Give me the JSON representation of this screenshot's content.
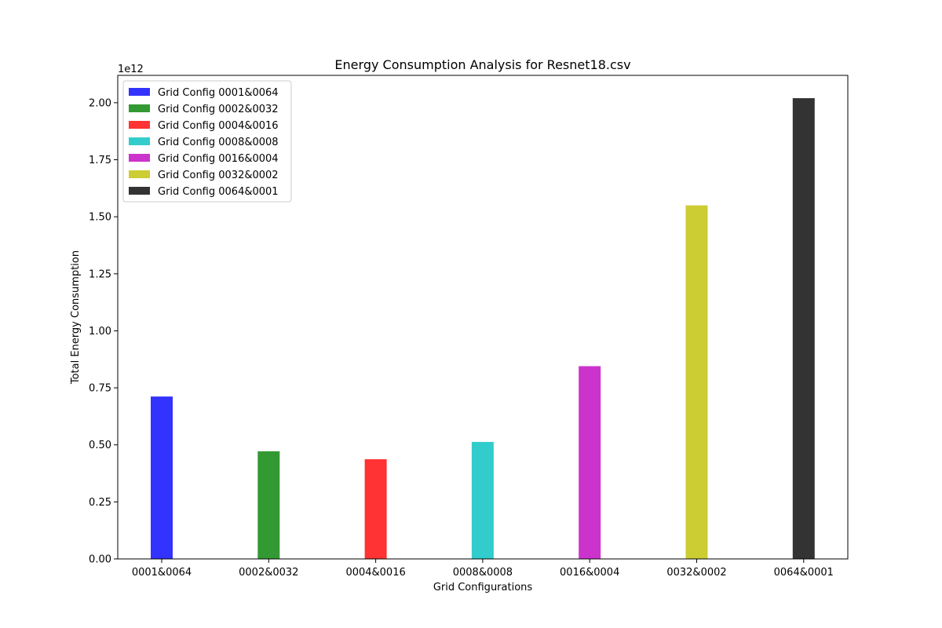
{
  "chart_data": {
    "type": "bar",
    "title": "Energy Consumption Analysis for Resnet18.csv",
    "xlabel": "Grid Configurations",
    "ylabel": "Total Energy Consumption",
    "y_offset_label": "1e12",
    "y_scale": 1000000000000.0,
    "ylim": [
      0,
      2120000000000.0
    ],
    "yticks": [
      0,
      250000000000.0,
      500000000000.0,
      750000000000.0,
      1000000000000.0,
      1250000000000.0,
      1500000000000.0,
      1750000000000.0,
      2000000000000.0
    ],
    "ytick_labels": [
      "0.00",
      "0.25",
      "0.50",
      "0.75",
      "1.00",
      "1.25",
      "1.50",
      "1.75",
      "2.00"
    ],
    "categories": [
      "0001&0064",
      "0002&0032",
      "0004&0016",
      "0008&0008",
      "0016&0004",
      "0032&0002",
      "0064&0001"
    ],
    "series": [
      {
        "name": "Grid Config 0001&0064",
        "category": "0001&0064",
        "value": 712000000000.0,
        "color": "#3333ff"
      },
      {
        "name": "Grid Config 0002&0032",
        "category": "0002&0032",
        "value": 472000000000.0,
        "color": "#339933"
      },
      {
        "name": "Grid Config 0004&0016",
        "category": "0004&0016",
        "value": 437000000000.0,
        "color": "#ff3333"
      },
      {
        "name": "Grid Config 0008&0008",
        "category": "0008&0008",
        "value": 513000000000.0,
        "color": "#33cccc"
      },
      {
        "name": "Grid Config 0016&0004",
        "category": "0016&0004",
        "value": 845000000000.0,
        "color": "#cc33cc"
      },
      {
        "name": "Grid Config 0032&0002",
        "category": "0032&0002",
        "value": 1550000000000.0,
        "color": "#cccc33"
      },
      {
        "name": "Grid Config 0064&0001",
        "category": "0064&0001",
        "value": 2020000000000.0,
        "color": "#333333"
      }
    ],
    "legend_position": "upper-left",
    "grid": false
  }
}
